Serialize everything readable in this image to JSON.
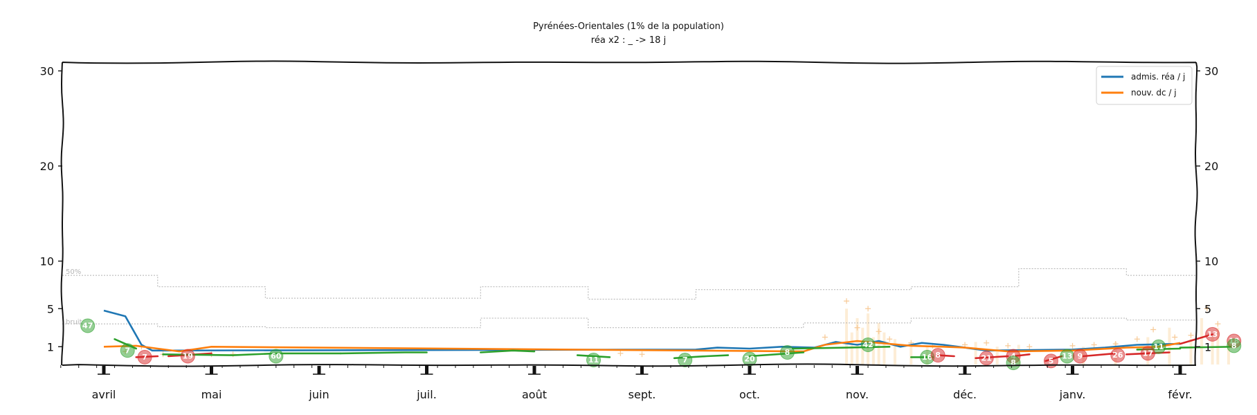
{
  "chart_data": {
    "type": "line",
    "title": "Pyrénées-Orientales (1% de la population)",
    "subtitle": "réa x2 : _ -> 18 j",
    "x_categories": [
      "avril",
      "mai",
      "juin",
      "juil.",
      "août",
      "sept.",
      "oct.",
      "nov.",
      "déc.",
      "janv.",
      "févr."
    ],
    "y_ticks": [
      1,
      5,
      10,
      20,
      30
    ],
    "ylim": [
      0,
      32
    ],
    "grid": false,
    "legend_position": "top-right",
    "colors": {
      "admis_rea": "#1f77b4",
      "nouv_dc": "#ff7f0e",
      "decreasing": "#2ca02c",
      "increasing": "#d62728",
      "bars": "#fde8cc",
      "plus_markers": "#f7c995",
      "thresholds": "#b0b0b0"
    },
    "series": [
      {
        "name": "admis. réa / j",
        "color": "#1f77b4",
        "points": [
          [
            0.0,
            4.8
          ],
          [
            0.1,
            4.5
          ],
          [
            0.2,
            4.2
          ],
          [
            0.3,
            2.2
          ],
          [
            0.35,
            1.2
          ],
          [
            0.45,
            0.6
          ],
          [
            5.5,
            0.7
          ],
          [
            5.7,
            0.9
          ],
          [
            6.0,
            0.8
          ],
          [
            6.3,
            1.0
          ],
          [
            6.6,
            0.9
          ],
          [
            6.8,
            1.5
          ],
          [
            7.0,
            1.2
          ],
          [
            7.2,
            1.6
          ],
          [
            7.4,
            1.0
          ],
          [
            7.6,
            1.4
          ],
          [
            7.8,
            1.2
          ],
          [
            8.0,
            0.9
          ],
          [
            8.2,
            0.6
          ],
          [
            9.0,
            0.7
          ],
          [
            9.3,
            0.9
          ],
          [
            9.6,
            1.2
          ],
          [
            10.0,
            1.3
          ]
        ]
      },
      {
        "name": "nouv. dc / j",
        "color": "#ff7f0e",
        "points": [
          [
            0.0,
            1.0
          ],
          [
            0.3,
            1.1
          ],
          [
            0.5,
            0.8
          ],
          [
            0.7,
            0.5
          ],
          [
            1.0,
            1.0
          ],
          [
            6.5,
            0.5
          ],
          [
            6.7,
            1.2
          ],
          [
            7.0,
            1.6
          ],
          [
            7.2,
            1.4
          ],
          [
            7.5,
            1.1
          ],
          [
            7.8,
            1.0
          ],
          [
            8.0,
            0.9
          ],
          [
            8.4,
            0.5
          ],
          [
            9.0,
            0.6
          ],
          [
            9.5,
            0.9
          ],
          [
            9.8,
            1.0
          ],
          [
            10.0,
            1.4
          ]
        ]
      }
    ],
    "reference_lines": [
      {
        "label": "50%",
        "values": [
          8.5,
          7.3,
          6.1,
          6.1,
          7.3,
          6.0,
          7.0,
          7.0,
          7.3,
          9.2,
          8.5
        ]
      },
      {
        "label": "bruit",
        "values": [
          3.4,
          3.1,
          3.0,
          3.0,
          4.0,
          3.0,
          3.0,
          3.5,
          4.0,
          4.0,
          3.8
        ]
      }
    ],
    "annotations": [
      {
        "x": -0.15,
        "y": 3.2,
        "label": "47",
        "trend": "down"
      },
      {
        "x": 0.22,
        "y": 0.6,
        "label": "7",
        "trend": "down"
      },
      {
        "x": 0.38,
        "y": -0.1,
        "label": "7",
        "trend": "up"
      },
      {
        "x": 0.78,
        "y": 0.0,
        "label": "19",
        "trend": "up"
      },
      {
        "x": 1.6,
        "y": 0.0,
        "label": "60",
        "trend": "down"
      },
      {
        "x": 4.55,
        "y": -0.4,
        "label": "11",
        "trend": "down"
      },
      {
        "x": 5.4,
        "y": -0.4,
        "label": "7",
        "trend": "down"
      },
      {
        "x": 6.0,
        "y": -0.3,
        "label": "20",
        "trend": "down"
      },
      {
        "x": 6.35,
        "y": 0.4,
        "label": "8",
        "trend": "down"
      },
      {
        "x": 7.1,
        "y": 1.2,
        "label": "42",
        "trend": "down"
      },
      {
        "x": 7.65,
        "y": -0.1,
        "label": "16",
        "trend": "down"
      },
      {
        "x": 7.75,
        "y": 0.1,
        "label": "8",
        "trend": "up"
      },
      {
        "x": 8.2,
        "y": -0.2,
        "label": "21",
        "trend": "up"
      },
      {
        "x": 8.45,
        "y": 0.0,
        "label": "4",
        "trend": "up"
      },
      {
        "x": 8.45,
        "y": -0.7,
        "label": "8",
        "trend": "down"
      },
      {
        "x": 8.8,
        "y": -0.5,
        "label": "5",
        "trend": "up"
      },
      {
        "x": 8.95,
        "y": 0.0,
        "label": "13",
        "trend": "down"
      },
      {
        "x": 9.07,
        "y": 0.0,
        "label": "9",
        "trend": "up"
      },
      {
        "x": 9.42,
        "y": 0.1,
        "label": "26",
        "trend": "up"
      },
      {
        "x": 9.8,
        "y": 1.0,
        "label": "11",
        "trend": "down"
      },
      {
        "x": 9.7,
        "y": 0.3,
        "label": "17",
        "trend": "up"
      },
      {
        "x": 10.3,
        "y": 2.3,
        "label": "13",
        "trend": "up"
      },
      {
        "x": 10.5,
        "y": 1.6,
        "label": "18",
        "trend": "up"
      },
      {
        "x": 10.5,
        "y": 1.1,
        "label": "8",
        "trend": "down"
      }
    ],
    "trend_segments": [
      {
        "trend": "down",
        "points": [
          [
            0.1,
            1.8
          ],
          [
            0.3,
            0.8
          ]
        ]
      },
      {
        "trend": "up",
        "points": [
          [
            0.3,
            -0.1
          ],
          [
            0.5,
            0.0
          ]
        ]
      },
      {
        "trend": "up",
        "points": [
          [
            0.6,
            0.0
          ],
          [
            1.0,
            0.3
          ]
        ]
      },
      {
        "trend": "down",
        "points": [
          [
            0.55,
            0.2
          ],
          [
            1.2,
            0.1
          ],
          [
            1.6,
            0.3
          ],
          [
            2.2,
            0.3
          ]
        ]
      },
      {
        "trend": "down",
        "points": [
          [
            2.2,
            0.3
          ],
          [
            2.8,
            0.4
          ],
          [
            3.0,
            0.4
          ]
        ]
      },
      {
        "trend": "down",
        "points": [
          [
            3.5,
            0.4
          ],
          [
            3.8,
            0.6
          ],
          [
            4.0,
            0.5
          ]
        ]
      },
      {
        "trend": "down",
        "points": [
          [
            4.4,
            0.1
          ],
          [
            4.7,
            -0.1
          ]
        ]
      },
      {
        "trend": "down",
        "points": [
          [
            5.3,
            -0.2
          ],
          [
            5.6,
            0.0
          ],
          [
            5.8,
            0.1
          ]
        ]
      },
      {
        "trend": "down",
        "points": [
          [
            6.0,
            0.0
          ],
          [
            6.5,
            0.4
          ]
        ]
      },
      {
        "trend": "down",
        "points": [
          [
            6.4,
            0.8
          ],
          [
            6.9,
            0.9
          ],
          [
            7.3,
            1.0
          ]
        ]
      },
      {
        "trend": "down",
        "points": [
          [
            7.5,
            -0.1
          ],
          [
            7.7,
            -0.1
          ]
        ]
      },
      {
        "trend": "up",
        "points": [
          [
            7.75,
            0.1
          ],
          [
            7.9,
            0.0
          ]
        ]
      },
      {
        "trend": "up",
        "points": [
          [
            8.1,
            -0.2
          ],
          [
            8.4,
            0.0
          ]
        ]
      },
      {
        "trend": "up",
        "points": [
          [
            8.45,
            0.0
          ],
          [
            8.6,
            0.2
          ]
        ]
      },
      {
        "trend": "up",
        "points": [
          [
            8.75,
            -0.5
          ],
          [
            8.9,
            0.0
          ]
        ]
      },
      {
        "trend": "up",
        "points": [
          [
            9.1,
            0.0
          ],
          [
            9.4,
            0.3
          ]
        ]
      },
      {
        "trend": "up",
        "points": [
          [
            9.5,
            0.2
          ],
          [
            9.9,
            0.4
          ]
        ]
      },
      {
        "trend": "down",
        "points": [
          [
            9.6,
            0.7
          ],
          [
            10.0,
            0.8
          ]
        ]
      },
      {
        "trend": "up",
        "points": [
          [
            10.0,
            1.3
          ],
          [
            10.3,
            2.3
          ]
        ]
      },
      {
        "trend": "down",
        "points": [
          [
            10.0,
            0.9
          ],
          [
            10.5,
            1.0
          ]
        ]
      }
    ],
    "daily_bars": [
      [
        6.9,
        5.0
      ],
      [
        6.95,
        2.5
      ],
      [
        7.0,
        4.0
      ],
      [
        7.05,
        3.0
      ],
      [
        7.1,
        4.5
      ],
      [
        7.15,
        2.0
      ],
      [
        7.2,
        3.5
      ],
      [
        7.25,
        2.5
      ],
      [
        7.35,
        1.8
      ],
      [
        7.5,
        1.2
      ],
      [
        7.65,
        1.0
      ],
      [
        8.1,
        1.5
      ],
      [
        8.3,
        1.0
      ],
      [
        8.5,
        1.2
      ],
      [
        9.1,
        1.0
      ],
      [
        9.4,
        1.5
      ],
      [
        9.7,
        2.0
      ],
      [
        9.9,
        3.0
      ],
      [
        10.1,
        1.8
      ],
      [
        10.2,
        4.0
      ],
      [
        10.3,
        2.0
      ],
      [
        10.35,
        3.0
      ],
      [
        10.45,
        1.5
      ]
    ],
    "plus_markers": [
      [
        0.2,
        0.5
      ],
      [
        0.35,
        1.0
      ],
      [
        0.55,
        0.2
      ],
      [
        1.0,
        0.2
      ],
      [
        1.2,
        0.2
      ],
      [
        4.8,
        0.3
      ],
      [
        5.0,
        0.2
      ],
      [
        6.7,
        2.0
      ],
      [
        6.9,
        5.8
      ],
      [
        7.0,
        3.0
      ],
      [
        7.1,
        5.0
      ],
      [
        7.2,
        2.6
      ],
      [
        7.3,
        1.8
      ],
      [
        7.5,
        1.4
      ],
      [
        7.7,
        1.1
      ],
      [
        8.0,
        1.2
      ],
      [
        8.2,
        1.4
      ],
      [
        8.4,
        1.1
      ],
      [
        8.6,
        1.0
      ],
      [
        9.0,
        1.1
      ],
      [
        9.2,
        1.2
      ],
      [
        9.4,
        1.3
      ],
      [
        9.6,
        1.8
      ],
      [
        9.75,
        2.8
      ],
      [
        9.95,
        2.0
      ],
      [
        10.1,
        2.2
      ],
      [
        10.25,
        5.0
      ],
      [
        10.35,
        3.4
      ]
    ]
  }
}
